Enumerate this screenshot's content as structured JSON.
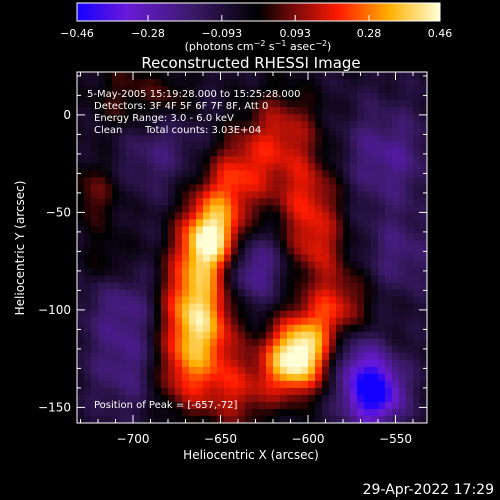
{
  "chart_data": {
    "type": "heatmap",
    "title": "Reconstructed RHESSI Image",
    "xlabel": "Heliocentric X (arcsec)",
    "ylabel": "Heliocentric Y (arcsec)",
    "xlim": [
      -732,
      -532
    ],
    "ylim": [
      -158,
      22
    ],
    "x_ticks": [
      -700,
      -650,
      -600,
      -550
    ],
    "y_ticks": [
      -150,
      -100,
      -50,
      0
    ],
    "colorbar": {
      "min": -0.46,
      "max": 0.46,
      "tick_labels": [
        "-0.46",
        "-0.28",
        "-0.093",
        "0.093",
        "0.28",
        "0.46"
      ],
      "tick_values": [
        -0.46,
        -0.28,
        -0.093,
        0.093,
        0.28,
        0.46
      ],
      "units_label": "(photons cm-2 s-1 asec-2)",
      "colors": [
        "#1400ff",
        "#6a1ad8",
        "#3a1a66",
        "#000000",
        "#7a0a0a",
        "#ff1a00",
        "#ffb000",
        "#ffffd8"
      ]
    },
    "annotations": {
      "line1": "5-May-2005 15:19:28.000 to 15:25:28.000",
      "line2": "Detectors: 3F 4F 5F 6F 7F 8F, Att 0",
      "line3": "Energy Range: 3.0 - 6.0 keV",
      "line4_a": "Clean",
      "line4_b": "Total counts: 3.03E+04",
      "peak": "Position of Peak = [-657,-72]"
    },
    "peak_position": [
      -657,
      -72
    ],
    "sources": [
      {
        "x": -656,
        "y": -66,
        "sigma": 12,
        "amplitude": 0.46
      },
      {
        "x": -665,
        "y": -90,
        "sigma": 14,
        "amplitude": 0.3
      },
      {
        "x": -662,
        "y": -110,
        "sigma": 14,
        "amplitude": 0.3
      },
      {
        "x": -671,
        "y": -132,
        "sigma": 15,
        "amplitude": 0.26
      },
      {
        "x": -652,
        "y": -48,
        "sigma": 13,
        "amplitude": 0.22
      },
      {
        "x": -639,
        "y": -29,
        "sigma": 13,
        "amplitude": 0.2
      },
      {
        "x": -615,
        "y": -10,
        "sigma": 16,
        "amplitude": 0.22
      },
      {
        "x": -600,
        "y": -42,
        "sigma": 14,
        "amplitude": 0.22
      },
      {
        "x": -596,
        "y": -67,
        "sigma": 12,
        "amplitude": 0.2
      },
      {
        "x": -584,
        "y": -99,
        "sigma": 14,
        "amplitude": 0.24
      },
      {
        "x": -602,
        "y": -118,
        "sigma": 13,
        "amplitude": 0.28
      },
      {
        "x": -609,
        "y": -128,
        "sigma": 12,
        "amplitude": 0.36
      },
      {
        "x": -640,
        "y": -142,
        "sigma": 14,
        "amplitude": 0.2
      },
      {
        "x": -700,
        "y": 5,
        "sigma": 16,
        "amplitude": 0.18
      },
      {
        "x": -722,
        "y": -40,
        "sigma": 12,
        "amplitude": 0.14
      },
      {
        "x": -713,
        "y": -76,
        "sigma": 11,
        "amplitude": 0.12
      },
      {
        "x": -676,
        "y": 8,
        "sigma": 9,
        "amplitude": 0.1
      },
      {
        "x": -690,
        "y": -12,
        "sigma": 18,
        "amplitude": -0.16
      },
      {
        "x": -705,
        "y": -95,
        "sigma": 16,
        "amplitude": -0.14
      },
      {
        "x": -700,
        "y": -130,
        "sigma": 16,
        "amplitude": -0.15
      },
      {
        "x": -634,
        "y": -78,
        "sigma": 13,
        "amplitude": -0.22
      },
      {
        "x": -556,
        "y": -22,
        "sigma": 18,
        "amplitude": -0.16
      },
      {
        "x": -548,
        "y": -72,
        "sigma": 14,
        "amplitude": -0.12
      },
      {
        "x": -563,
        "y": -142,
        "sigma": 12,
        "amplitude": -0.44
      },
      {
        "x": -575,
        "y": -120,
        "sigma": 11,
        "amplitude": -0.16
      }
    ]
  },
  "footer": {
    "timestamp": "29-Apr-2022 17:29"
  }
}
